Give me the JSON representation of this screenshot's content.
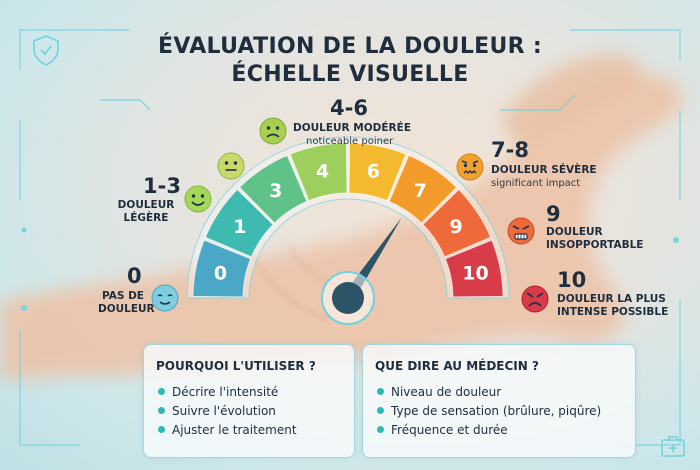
{
  "title_line1": "ÉVALUATION DE LA DOULEUR :",
  "title_line2": "ÉCHELLE VISUELLE",
  "gauge": {
    "segments": [
      "0",
      "1",
      "3",
      "4",
      "6",
      "7",
      "9",
      "10"
    ],
    "colors": [
      "#4aa8c6",
      "#3fbab0",
      "#5fc289",
      "#9ccf5b",
      "#f4ba2f",
      "#f29a2a",
      "#ef6a3a",
      "#d73c48"
    ],
    "needle_value": 7
  },
  "levels": [
    {
      "range": "0",
      "caption_1": "PAS DE",
      "caption_2": "DOULEUR",
      "sub": ""
    },
    {
      "range": "1-3",
      "caption_1": "DOULEUR",
      "caption_2": "LÉGÈRE",
      "sub": ""
    },
    {
      "range": "4-6",
      "caption_1": "DOULEUR MODÉRÉE",
      "caption_2": "",
      "sub": "noticeable poiner"
    },
    {
      "range": "7-8",
      "caption_1": "DOULEUR SÉVÈRE",
      "caption_2": "",
      "sub": "significant impact"
    },
    {
      "range": "9",
      "caption_1": "DOULEUR",
      "caption_2": "INSOPPORTABLE",
      "sub": ""
    },
    {
      "range": "10",
      "caption_1": "DOULEUR LA PLUS",
      "caption_2": "INTENSE POSSIBLE",
      "sub": ""
    }
  ],
  "face_colors": {
    "calm": "#7ecde0",
    "happy": "#a5d85a",
    "neutral": "#c8d96a",
    "sad": "#a9cf4f",
    "worried": "#f2a12e",
    "angry": "#ee6a3b",
    "furious": "#d83a4a"
  },
  "panel_left": {
    "heading": "POURQUOI L'UTILISER ?",
    "items": [
      "Décrire l'intensité",
      "Suivre l'évolution",
      "Ajuster le traitement"
    ]
  },
  "panel_right": {
    "heading": "QUE DIRE AU MÉDECIN ?",
    "items": [
      "Niveau de douleur",
      "Type de sensation (brûlure, piqûre)",
      "Fréquence et durée"
    ]
  },
  "accent": "#2fb7b2"
}
